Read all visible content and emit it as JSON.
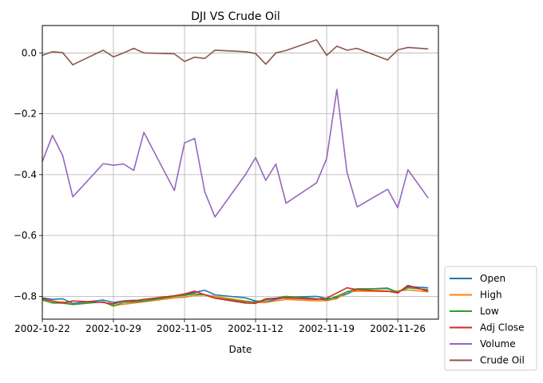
{
  "chart_data": {
    "type": "line",
    "title": "DJI VS Crude Oil",
    "xlabel": "Date",
    "ylabel": "",
    "grid": true,
    "legend_position": "right-outside-bottom",
    "xlim": [
      "2002-10-22",
      "2002-11-30"
    ],
    "ylim": [
      -0.875,
      0.09
    ],
    "x_ticks": [
      "2002-10-22",
      "2002-10-29",
      "2002-11-05",
      "2002-11-12",
      "2002-11-19",
      "2002-11-26"
    ],
    "y_ticks": [
      0.0,
      -0.2,
      -0.4,
      -0.6,
      -0.8
    ],
    "y_tick_labels": [
      "0.0",
      "−0.2",
      "−0.4",
      "−0.6",
      "−0.8"
    ],
    "x": [
      "2002-10-22",
      "2002-10-23",
      "2002-10-24",
      "2002-10-25",
      "2002-10-28",
      "2002-10-29",
      "2002-10-30",
      "2002-10-31",
      "2002-11-01",
      "2002-11-04",
      "2002-11-05",
      "2002-11-06",
      "2002-11-07",
      "2002-11-08",
      "2002-11-11",
      "2002-11-12",
      "2002-11-13",
      "2002-11-14",
      "2002-11-15",
      "2002-11-18",
      "2002-11-19",
      "2002-11-20",
      "2002-11-21",
      "2002-11-22",
      "2002-11-25",
      "2002-11-26",
      "2002-11-27",
      "2002-11-29"
    ],
    "series": [
      {
        "name": "Open",
        "color": "#1f77b4",
        "values": [
          -0.805,
          -0.81,
          -0.808,
          -0.823,
          -0.812,
          -0.82,
          -0.815,
          -0.813,
          -0.815,
          -0.798,
          -0.795,
          -0.787,
          -0.78,
          -0.795,
          -0.805,
          -0.815,
          -0.818,
          -0.81,
          -0.803,
          -0.8,
          -0.808,
          -0.804,
          -0.792,
          -0.777,
          -0.773,
          -0.787,
          -0.768,
          -0.772
        ]
      },
      {
        "name": "High",
        "color": "#ff7f0e",
        "values": [
          -0.812,
          -0.82,
          -0.818,
          -0.826,
          -0.818,
          -0.83,
          -0.826,
          -0.822,
          -0.818,
          -0.805,
          -0.803,
          -0.797,
          -0.795,
          -0.8,
          -0.815,
          -0.82,
          -0.82,
          -0.815,
          -0.81,
          -0.815,
          -0.814,
          -0.808,
          -0.785,
          -0.783,
          -0.784,
          -0.782,
          -0.779,
          -0.785
        ]
      },
      {
        "name": "Low",
        "color": "#2ca02c",
        "values": [
          -0.812,
          -0.822,
          -0.822,
          -0.827,
          -0.818,
          -0.832,
          -0.82,
          -0.818,
          -0.816,
          -0.8,
          -0.797,
          -0.792,
          -0.795,
          -0.805,
          -0.818,
          -0.818,
          -0.812,
          -0.806,
          -0.8,
          -0.808,
          -0.812,
          -0.8,
          -0.785,
          -0.775,
          -0.775,
          -0.786,
          -0.772,
          -0.778
        ]
      },
      {
        "name": "Adj Close",
        "color": "#d62728",
        "values": [
          -0.808,
          -0.815,
          -0.822,
          -0.815,
          -0.82,
          -0.825,
          -0.815,
          -0.815,
          -0.81,
          -0.798,
          -0.792,
          -0.783,
          -0.795,
          -0.806,
          -0.822,
          -0.823,
          -0.808,
          -0.806,
          -0.805,
          -0.81,
          -0.806,
          -0.789,
          -0.772,
          -0.778,
          -0.783,
          -0.789,
          -0.764,
          -0.783
        ]
      },
      {
        "name": "Volume",
        "color": "#9467bd",
        "values": [
          -0.357,
          -0.271,
          -0.337,
          -0.473,
          -0.364,
          -0.369,
          -0.365,
          -0.386,
          -0.261,
          -0.452,
          -0.296,
          -0.281,
          -0.457,
          -0.539,
          -0.4,
          -0.344,
          -0.419,
          -0.365,
          -0.494,
          -0.427,
          -0.347,
          -0.12,
          -0.392,
          -0.506,
          -0.448,
          -0.509,
          -0.384,
          -0.477
        ]
      },
      {
        "name": "Crude Oil",
        "color": "#8c564b",
        "values": [
          -0.008,
          0.004,
          0.001,
          -0.039,
          0.009,
          -0.013,
          0.0,
          0.015,
          0.0,
          -0.003,
          -0.028,
          -0.014,
          -0.018,
          0.009,
          0.004,
          -0.002,
          -0.037,
          0.0,
          0.008,
          0.043,
          -0.008,
          0.022,
          0.009,
          0.015,
          -0.023,
          0.01,
          0.018,
          0.013
        ]
      }
    ]
  }
}
